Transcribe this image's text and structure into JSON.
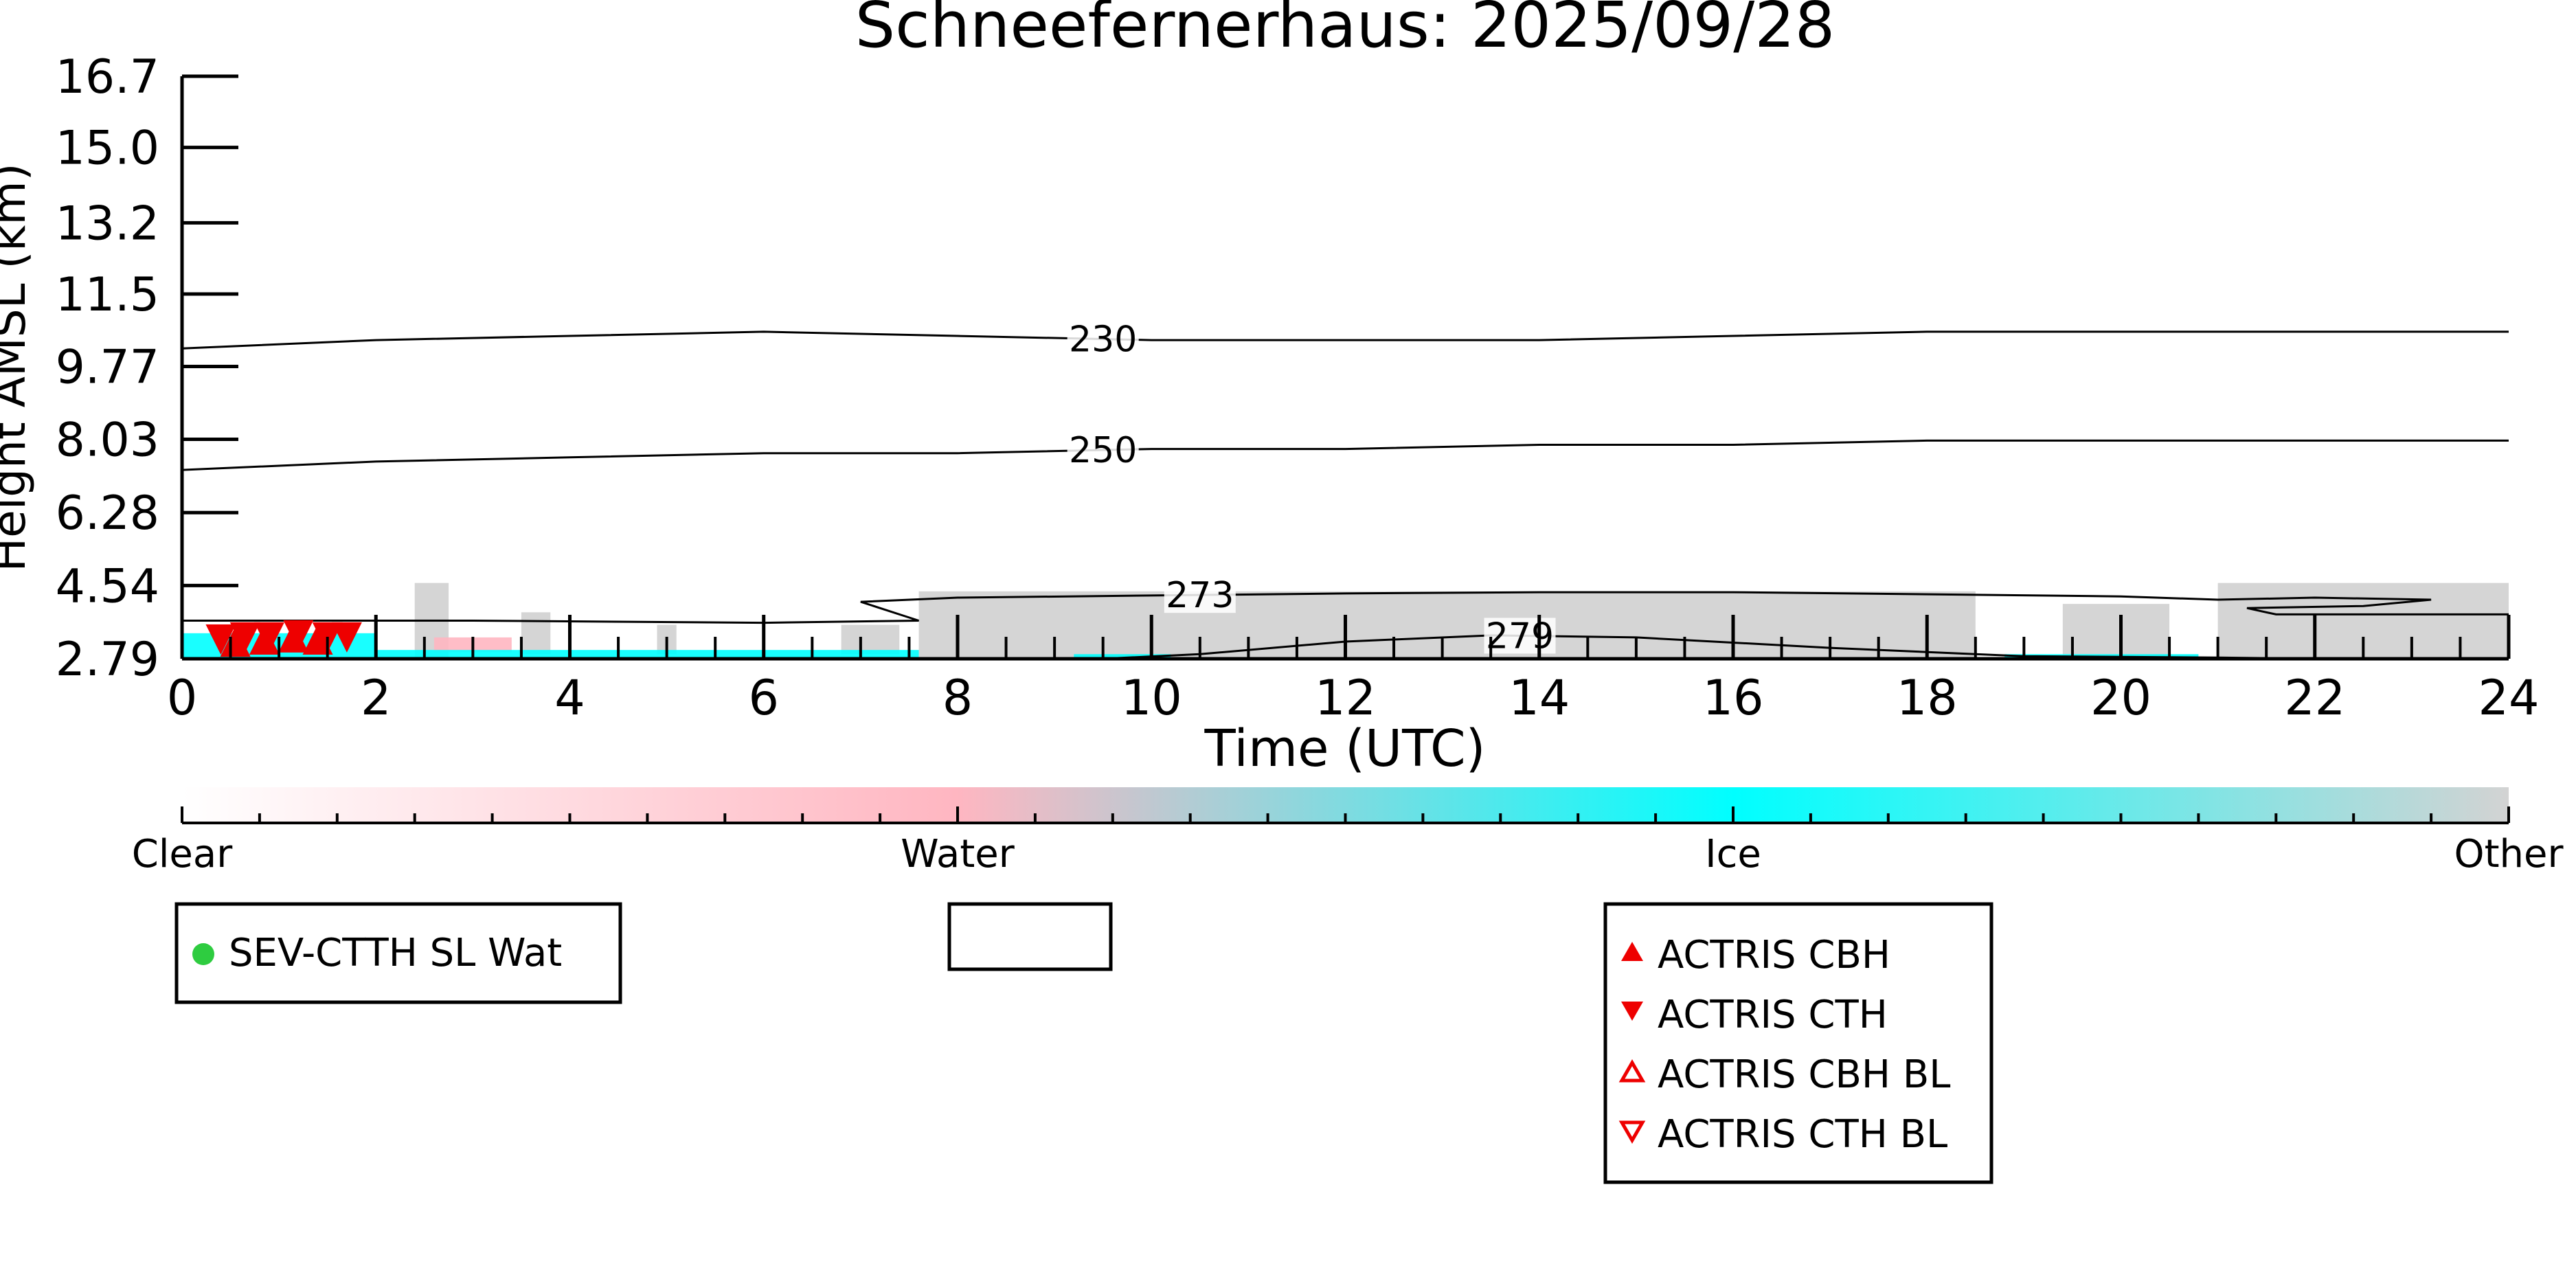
{
  "chart_data": {
    "type": "heatmap",
    "title": "Schneefernerhaus: 2025/09/28",
    "xlabel": "Time (UTC)",
    "ylabel": "Height AMSL (km)",
    "xlim": [
      0,
      24
    ],
    "ylim": [
      2.79,
      16.7
    ],
    "x_ticks": [
      "0",
      "2",
      "4",
      "6",
      "8",
      "10",
      "12",
      "14",
      "16",
      "18",
      "20",
      "22",
      "24"
    ],
    "y_ticks": [
      "2.79",
      "4.54",
      "6.28",
      "8.03",
      "9.77",
      "11.5",
      "13.2",
      "15.0",
      "16.7"
    ],
    "y_tick_values": [
      2.79,
      4.54,
      6.28,
      8.03,
      9.77,
      11.5,
      13.2,
      15.0,
      16.7
    ],
    "temperature_contours": [
      {
        "label": "230",
        "points": [
          [
            0,
            10.2
          ],
          [
            2,
            10.4
          ],
          [
            4,
            10.5
          ],
          [
            6,
            10.6
          ],
          [
            8,
            10.5
          ],
          [
            10,
            10.4
          ],
          [
            12,
            10.4
          ],
          [
            14,
            10.4
          ],
          [
            16,
            10.5
          ],
          [
            18,
            10.6
          ],
          [
            20,
            10.6
          ],
          [
            22,
            10.6
          ],
          [
            24,
            10.6
          ]
        ],
        "label_x": 9.5
      },
      {
        "label": "250",
        "points": [
          [
            0,
            7.3
          ],
          [
            2,
            7.5
          ],
          [
            4,
            7.6
          ],
          [
            6,
            7.7
          ],
          [
            8,
            7.7
          ],
          [
            10,
            7.8
          ],
          [
            12,
            7.8
          ],
          [
            14,
            7.9
          ],
          [
            16,
            7.9
          ],
          [
            18,
            8.0
          ],
          [
            20,
            8.0
          ],
          [
            22,
            8.0
          ],
          [
            24,
            8.0
          ]
        ],
        "label_x": 9.5
      },
      {
        "label": "273",
        "points": [
          [
            0,
            3.7
          ],
          [
            3,
            3.7
          ],
          [
            6,
            3.65
          ],
          [
            7.6,
            3.7
          ],
          [
            7,
            4.15
          ],
          [
            8,
            4.25
          ],
          [
            10,
            4.3
          ],
          [
            12,
            4.35
          ],
          [
            14,
            4.38
          ],
          [
            16,
            4.38
          ],
          [
            18,
            4.33
          ],
          [
            20,
            4.28
          ],
          [
            21,
            4.2
          ],
          [
            22,
            4.25
          ],
          [
            23.2,
            4.2
          ],
          [
            22.5,
            4.05
          ],
          [
            21.3,
            4.0
          ],
          [
            21.6,
            3.85
          ],
          [
            24,
            3.85
          ]
        ],
        "label_x": 10.5
      },
      {
        "label": "279",
        "points": [
          [
            9.5,
            2.79
          ],
          [
            10.5,
            2.9
          ],
          [
            12,
            3.2
          ],
          [
            13.5,
            3.35
          ],
          [
            15,
            3.3
          ],
          [
            17,
            3.05
          ],
          [
            19,
            2.85
          ],
          [
            21,
            2.82
          ],
          [
            22,
            2.79
          ]
        ],
        "label_x": 13.8
      }
    ],
    "classification_scale": {
      "labels": [
        "Clear",
        "Water",
        "Ice",
        "Other"
      ],
      "colors": [
        "#ffffff",
        "#ffb6c1",
        "#00ffff",
        "#d3d3d3"
      ]
    },
    "series": [
      {
        "name": "SEV-CTTH SL Wat",
        "marker": "filled-circle",
        "color": "#2ecc40",
        "points": []
      },
      {
        "name": "ACTRIS CBH",
        "marker": "filled-triangle-up",
        "color": "#ee0000",
        "points": [
          [
            0.55,
            3.2
          ],
          [
            0.85,
            3.25
          ],
          [
            1.15,
            3.3
          ],
          [
            1.4,
            3.25
          ]
        ]
      },
      {
        "name": "ACTRIS CTH",
        "marker": "filled-triangle-down",
        "color": "#ee0000",
        "points": [
          [
            0.4,
            3.25
          ],
          [
            0.65,
            3.3
          ],
          [
            0.9,
            3.3
          ],
          [
            1.2,
            3.35
          ],
          [
            1.5,
            3.3
          ],
          [
            1.7,
            3.3
          ]
        ]
      },
      {
        "name": "ACTRIS CBH BL",
        "marker": "open-triangle-up",
        "color": "#ee0000",
        "points": []
      },
      {
        "name": "ACTRIS CTH BL",
        "marker": "open-triangle-down",
        "color": "#ee0000",
        "points": []
      }
    ],
    "classification_regions": [
      {
        "class": "Other",
        "x0": 2.4,
        "x1": 2.75,
        "y0": 2.79,
        "y1": 4.6
      },
      {
        "class": "Other",
        "x0": 3.5,
        "x1": 3.8,
        "y0": 2.9,
        "y1": 3.9
      },
      {
        "class": "Other",
        "x0": 4.9,
        "x1": 5.1,
        "y0": 2.9,
        "y1": 3.6
      },
      {
        "class": "Other",
        "x0": 6.8,
        "x1": 7.4,
        "y0": 2.9,
        "y1": 3.6
      },
      {
        "class": "Other",
        "x0": 7.6,
        "x1": 18.5,
        "y0": 2.79,
        "y1": 4.4
      },
      {
        "class": "Other",
        "x0": 19.4,
        "x1": 20.5,
        "y0": 2.79,
        "y1": 4.1
      },
      {
        "class": "Other",
        "x0": 21.0,
        "x1": 24.0,
        "y0": 2.79,
        "y1": 4.6
      },
      {
        "class": "Water",
        "x0": 2.6,
        "x1": 3.4,
        "y0": 2.95,
        "y1": 3.3
      },
      {
        "class": "Ice",
        "x0": 0.0,
        "x1": 2.0,
        "y0": 2.79,
        "y1": 3.4
      },
      {
        "class": "Ice",
        "x0": 2.0,
        "x1": 7.6,
        "y0": 2.79,
        "y1": 3.0
      },
      {
        "class": "Ice",
        "x0": 9.2,
        "x1": 10.2,
        "y0": 2.79,
        "y1": 2.9
      },
      {
        "class": "Ice",
        "x0": 18.8,
        "x1": 20.8,
        "y0": 2.79,
        "y1": 2.9
      }
    ]
  }
}
